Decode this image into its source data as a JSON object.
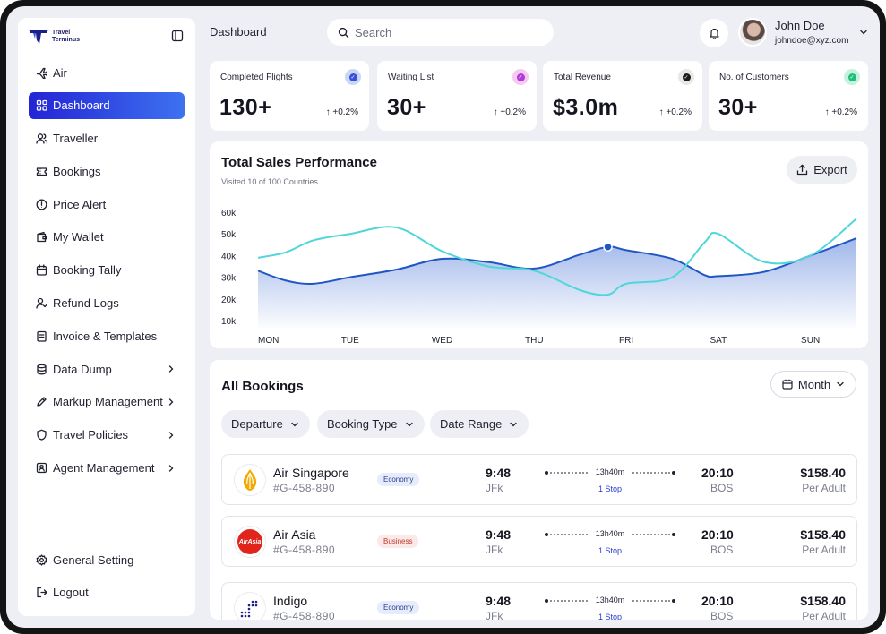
{
  "app": {
    "brand_line1": "Travel",
    "brand_line2": "Terminus"
  },
  "sidebar": {
    "items": [
      {
        "label": "Air",
        "icon": "plane-icon"
      },
      {
        "label": "Dashboard",
        "icon": "grid-icon",
        "active": true
      },
      {
        "label": "Traveller",
        "icon": "users-icon"
      },
      {
        "label": "Bookings",
        "icon": "ticket-icon"
      },
      {
        "label": "Price Alert",
        "icon": "alert-icon"
      },
      {
        "label": "My Wallet",
        "icon": "wallet-icon"
      },
      {
        "label": "Booking Tally",
        "icon": "calendar-icon"
      },
      {
        "label": "Refund Logs",
        "icon": "refund-icon"
      },
      {
        "label": "Invoice & Templates",
        "icon": "document-icon"
      },
      {
        "label": "Data Dump",
        "icon": "database-icon",
        "has_submenu": true
      },
      {
        "label": "Markup Management",
        "icon": "pen-icon",
        "has_submenu": true
      },
      {
        "label": "Travel Policies",
        "icon": "shield-icon",
        "has_submenu": true
      },
      {
        "label": "Agent Management",
        "icon": "id-card-icon",
        "has_submenu": true
      }
    ],
    "bottom_items": [
      {
        "label": "General Setting",
        "icon": "gear-icon"
      },
      {
        "label": "Logout",
        "icon": "logout-icon"
      }
    ]
  },
  "header": {
    "title": "Dashboard",
    "search_placeholder": "Search",
    "user": {
      "name": "John Doe",
      "email": "johndoe@xyz.com"
    }
  },
  "stats": [
    {
      "label": "Completed Flights",
      "value": "130+",
      "change": "+0.2%",
      "badge_color": "#3b4fd8",
      "badge_bg": "#c9d7f5"
    },
    {
      "label": "Waiting List",
      "value": "30+",
      "change": "+0.2%",
      "badge_color": "#b03bd8",
      "badge_bg": "#f6c9f0"
    },
    {
      "label": "Total Revenue",
      "value": "$3.0m",
      "change": "+0.2%",
      "badge_color": "#1b1b1b",
      "badge_bg": "#e8e8e8"
    },
    {
      "label": "No. of Customers",
      "value": "30+",
      "change": "+0.2%",
      "badge_color": "#1fbf7a",
      "badge_bg": "#c6f1de"
    }
  ],
  "sales": {
    "title": "Total Sales Performance",
    "subtitle": "Visited 10 of 100 Countries",
    "export_label": "Export"
  },
  "chart_data": {
    "type": "line",
    "categories": [
      "MON",
      "TUE",
      "WED",
      "THU",
      "FRI",
      "SAT",
      "SUN"
    ],
    "y_ticks": [
      "60k",
      "50k",
      "40k",
      "30k",
      "20k",
      "10k"
    ],
    "ylim": [
      10000,
      60000
    ],
    "x": [
      0,
      0.3,
      0.6,
      1,
      1.5,
      2,
      2.5,
      3,
      3.5,
      3.8,
      4,
      4.5,
      4.85,
      5,
      5.5,
      6,
      6.5
    ],
    "series": [
      {
        "color": "#1f56c4",
        "fill": true,
        "values": [
          33000,
          28500,
          27000,
          30000,
          33500,
          38500,
          37000,
          34000,
          40500,
          44000,
          42500,
          38500,
          31000,
          30500,
          32500,
          40000,
          48000
        ]
      },
      {
        "color": "#4fd6d9",
        "fill": false,
        "values": [
          39000,
          41500,
          47000,
          50000,
          53000,
          42000,
          35000,
          33000,
          24000,
          22000,
          27000,
          30000,
          46000,
          50000,
          37000,
          40000,
          57000
        ]
      }
    ],
    "highlight_point": {
      "x": 3.8,
      "y": 44000
    },
    "grid": false
  },
  "bookings": {
    "title": "All Bookings",
    "period_label": "Month",
    "filters": [
      "Departure",
      "Booking Type",
      "Date Range"
    ],
    "rows": [
      {
        "airline": "Air Singapore",
        "code": "#G-458-890",
        "class": "Economy",
        "class_key": "economy",
        "dep_time": "9:48",
        "dep_code": "JFk",
        "duration": "13h40m",
        "stops": "1 Stop",
        "arr_time": "20:10",
        "arr_code": "BOS",
        "price": "$158.40",
        "per": "Per Adult",
        "logo": "singapore-logo"
      },
      {
        "airline": "Air Asia",
        "code": "#G-458-890",
        "class": "Business",
        "class_key": "business",
        "dep_time": "9:48",
        "dep_code": "JFk",
        "duration": "13h40m",
        "stops": "1 Stop",
        "arr_time": "20:10",
        "arr_code": "BOS",
        "price": "$158.40",
        "per": "Per Adult",
        "logo": "airasia-logo",
        "logo_text": "AirAsia"
      },
      {
        "airline": "Indigo",
        "code": "#G-458-890",
        "class": "Economy",
        "class_key": "economy",
        "dep_time": "9:48",
        "dep_code": "JFk",
        "duration": "13h40m",
        "stops": "1 Stop",
        "arr_time": "20:10",
        "arr_code": "BOS",
        "price": "$158.40",
        "per": "Per Adult",
        "logo": "indigo-logo"
      }
    ]
  }
}
